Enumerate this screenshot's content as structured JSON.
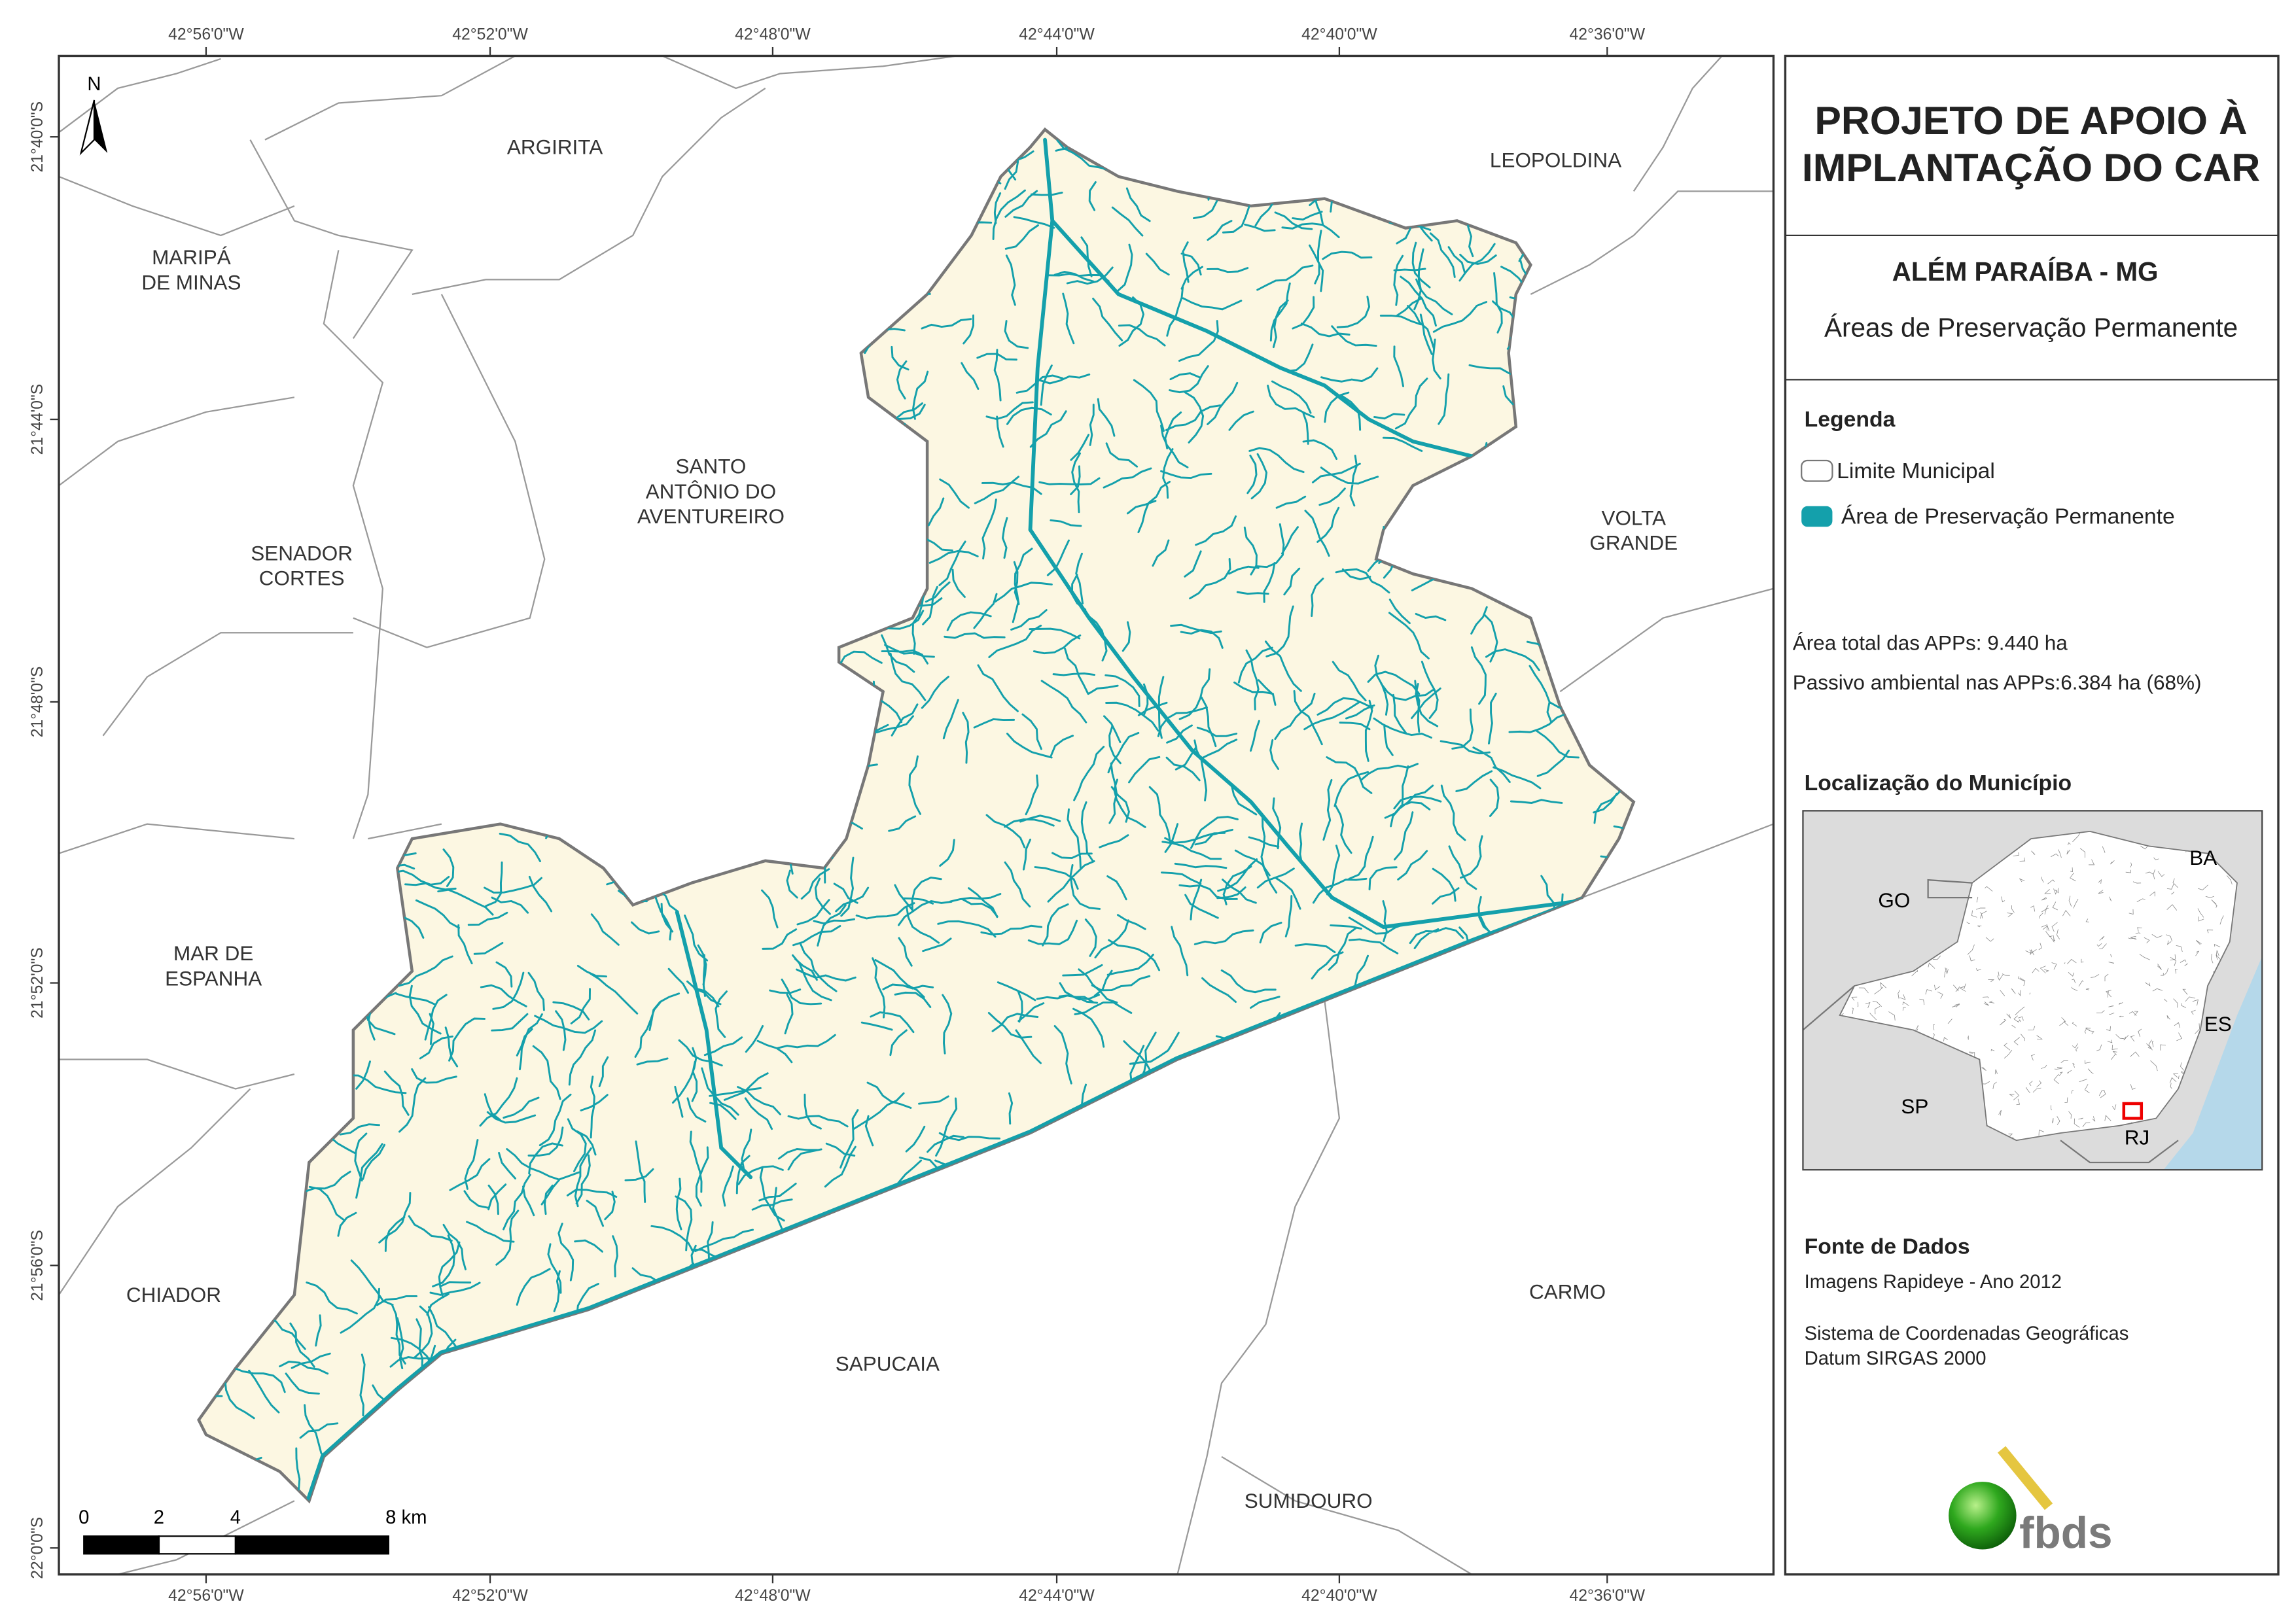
{
  "header": {
    "title_line1": "PROJETO DE APOIO À",
    "title_line2": "IMPLANTAÇÃO DO CAR"
  },
  "municipality": {
    "name": "ALÉM PARAÍBA - MG",
    "subtitle": "Áreas de Preservação Permanente"
  },
  "legend": {
    "title": "Legenda",
    "items": [
      "Limite Municipal",
      "Área de Preservação Permanente"
    ]
  },
  "stats": [
    "Área total das APPs: 9.440 ha",
    "Passivo ambiental nas APPs:6.384 ha (68%)"
  ],
  "location": {
    "title": "Localização do Município",
    "labels": [
      "BA",
      "GO",
      "ES",
      "SP",
      "RJ"
    ]
  },
  "sources": {
    "title": "Fonte de Dados",
    "lines": [
      "Imagens Rapideye - Ano 2012",
      "Sistema de Coordenadas Geográficas",
      "Datum SIRGAS 2000"
    ]
  },
  "logo": "fbds",
  "map": {
    "north": "N",
    "longitudes": [
      "42°56'0\"W",
      "42°52'0\"W",
      "42°48'0\"W",
      "42°44'0\"W",
      "42°40'0\"W",
      "42°36'0\"W"
    ],
    "latitudes": [
      "21°40'0\"S",
      "21°44'0\"S",
      "21°48'0\"S",
      "21°52'0\"S",
      "21°56'0\"S",
      "22°0'0\"S"
    ],
    "places": [
      {
        "lines": [
          "ARGIRITA"
        ]
      },
      {
        "lines": [
          "LEOPOLDINA"
        ]
      },
      {
        "lines": [
          "MARIPÁ",
          "DE MINAS"
        ]
      },
      {
        "lines": [
          "SANTO",
          "ANTÔNIO DO",
          "AVENTUREIRO"
        ]
      },
      {
        "lines": [
          "SENADOR",
          "CORTES"
        ]
      },
      {
        "lines": [
          "VOLTA",
          "GRANDE"
        ]
      },
      {
        "lines": [
          "MAR DE",
          "ESPANHA"
        ]
      },
      {
        "lines": [
          "CHIADOR"
        ]
      },
      {
        "lines": [
          "SAPUCAIA"
        ]
      },
      {
        "lines": [
          "CARMO"
        ]
      },
      {
        "lines": [
          "SUMIDOURO"
        ]
      }
    ],
    "scale_bar": [
      "0",
      "2",
      "4",
      "8 km"
    ]
  }
}
